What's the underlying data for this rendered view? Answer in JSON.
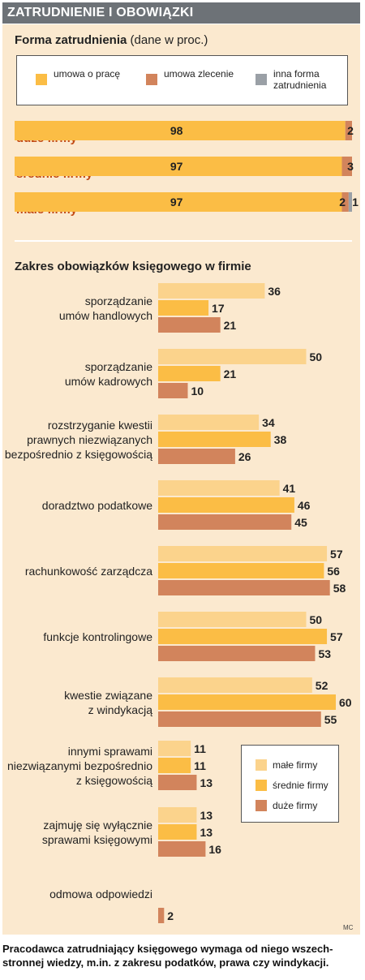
{
  "header": "ZATRUDNIENIE I OBOWIĄZKI",
  "section1": {
    "title": "Forma zatrudnienia",
    "subtitle": "(dane w proc.)"
  },
  "section2": {
    "title": "Zakres obowiązków księgowego w firmie"
  },
  "credit": "MC",
  "footer": "Pracodawca zatrudniający księgowego wymaga od niego wszech-stronnej wiedzy, m.in. z zakresu podatków, prawa czy windykacji.",
  "colors": {
    "light": "#fbd38c",
    "orange": "#fbbd45",
    "brown": "#d2845c",
    "grey": "#9aa0a6",
    "panel": "#fbe9cf"
  },
  "chart_data": [
    {
      "type": "bar",
      "orientation": "horizontal-stacked",
      "title": "Forma zatrudnienia",
      "subtitle": "(dane w proc.)",
      "legend_placement": "top",
      "categories": [
        "duże firmy",
        "średnie firmy",
        "małe firmy"
      ],
      "series": [
        {
          "name": "umowa o pracę",
          "values": [
            98,
            97,
            97
          ],
          "color": "#fbbd45"
        },
        {
          "name": "umowa zlecenie",
          "values": [
            2,
            3,
            2
          ],
          "color": "#d2845c"
        },
        {
          "name": "inna forma zatrudnienia",
          "values": [
            0,
            0,
            1
          ],
          "color": "#9aa0a6"
        }
      ],
      "ylim": [
        0,
        100
      ]
    },
    {
      "type": "bar",
      "orientation": "horizontal-grouped",
      "title": "Zakres obowiązków księgowego w firmie",
      "legend_placement": "bottom-right",
      "categories": [
        "sporządzanie umów handlowych",
        "sporządzanie umów kadrowych",
        "rozstrzyganie kwestii prawnych niezwiązanych bezpośrednio z księgowością",
        "doradztwo podatkowe",
        "rachunkowość zarządcza",
        "funkcje kontrolingowe",
        "kwestie związane z windykacją",
        "innymi sprawami niezwiązanymi bezpośrednio z księgowością",
        "zajmuję się wyłącznie sprawami księgowymi",
        "odmowa odpowiedzi"
      ],
      "category_lines": [
        [
          "sporządzanie",
          "umów handlowych"
        ],
        [
          "sporządzanie",
          "umów kadrowych"
        ],
        [
          "rozstrzyganie kwestii",
          "prawnych niezwiązanych",
          "bezpośrednio z księgowością"
        ],
        [
          "doradztwo podatkowe"
        ],
        [
          "rachunkowość zarządcza"
        ],
        [
          "funkcje kontrolingowe"
        ],
        [
          "kwestie związane",
          "z windykacją"
        ],
        [
          "innymi sprawami",
          "niezwiązanymi bezpośrednio",
          "z księgowością"
        ],
        [
          "zajmuję się wyłącznie",
          "sprawami księgowymi"
        ],
        [
          "odmowa odpowiedzi"
        ]
      ],
      "series": [
        {
          "name": "małe firmy",
          "values": [
            36,
            50,
            34,
            41,
            57,
            50,
            52,
            11,
            13,
            null
          ],
          "color": "#fbd38c"
        },
        {
          "name": "średnie firmy",
          "values": [
            17,
            21,
            38,
            46,
            56,
            57,
            60,
            11,
            13,
            null
          ],
          "color": "#fbbd45"
        },
        {
          "name": "duże firmy",
          "values": [
            21,
            10,
            26,
            45,
            58,
            53,
            55,
            13,
            16,
            2
          ],
          "color": "#d2845c"
        }
      ]
    }
  ]
}
